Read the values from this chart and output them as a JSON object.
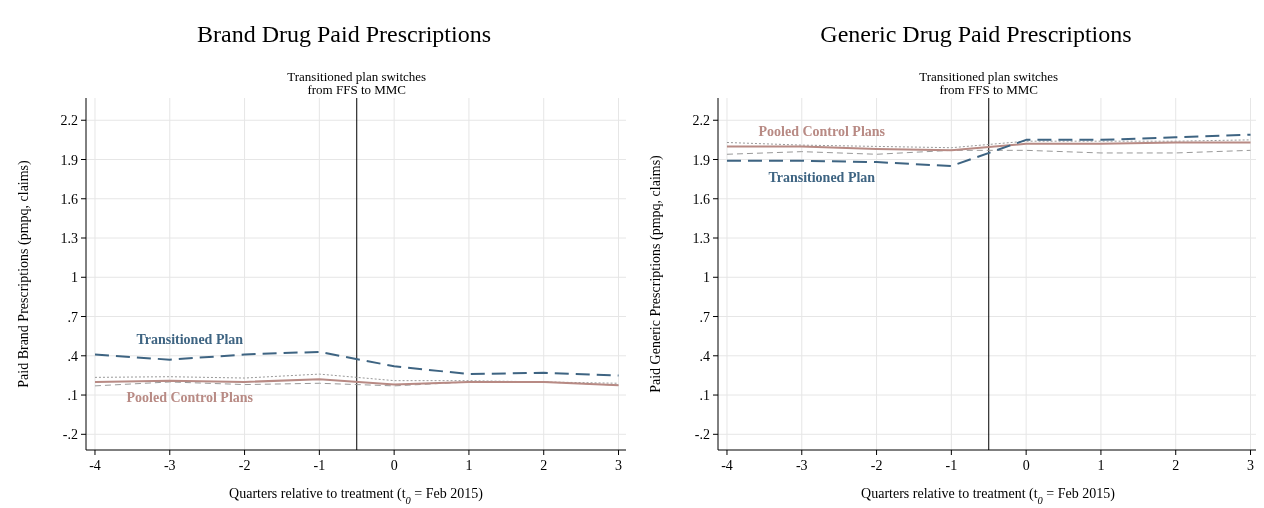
{
  "chart_data": [
    {
      "type": "line",
      "title": "Brand Drug Paid Prescriptions",
      "xlabel": "Quarters relative to treatment (t$_{0}$ = Feb 2015)",
      "ylabel": "Paid Brand Prescriptions (pmpq, claims)",
      "x": [
        -4,
        -3,
        -2,
        -1,
        0,
        1,
        2,
        3
      ],
      "xlim": [
        -4.12,
        3.1
      ],
      "xticks": [
        -4,
        -3,
        -2,
        -1,
        0,
        1,
        2,
        3
      ],
      "ylim": [
        -0.32,
        2.37
      ],
      "yticks": [
        {
          "value": -0.2,
          "label": "-.2"
        },
        {
          "value": 0.1,
          "label": ".1"
        },
        {
          "value": 0.4,
          "label": ".4"
        },
        {
          "value": 0.7,
          "label": ".7"
        },
        1,
        1.3,
        1.6,
        1.9,
        2.2
      ],
      "grid": true,
      "series": [
        {
          "color": "#999999",
          "line_style": "dotted",
          "values": [
            0.235,
            0.24,
            0.23,
            0.26,
            0.21,
            0.21,
            0.2,
            0.19
          ]
        },
        {
          "color": "#999999",
          "line_style": "dashed",
          "values": [
            0.17,
            0.2,
            0.18,
            0.19,
            0.17,
            0.2,
            0.2,
            0.175
          ]
        },
        {
          "name": "Pooled Control Plans",
          "color": "#b88a84",
          "line_style": "solid",
          "values": [
            0.2,
            0.21,
            0.2,
            0.22,
            0.18,
            0.2,
            0.2,
            0.175
          ]
        },
        {
          "name": "Transitioned Plan",
          "color": "#3e6482",
          "line_style": "dashed",
          "values": [
            0.41,
            0.37,
            0.41,
            0.43,
            0.32,
            0.26,
            0.27,
            0.25
          ]
        }
      ],
      "ref_lines": [
        {
          "axis": "x",
          "value": -0.5,
          "label": "Transitioned plan switches\nfrom FFS to MMC",
          "color": "#000000"
        }
      ]
    },
    {
      "type": "line",
      "title": "Generic Drug Paid Prescriptions",
      "xlabel": "Quarters relative to treatment (t$_{0}$ = Feb 2015)",
      "ylabel": "Paid Generic Prescriptions (pmpq, claims)",
      "x": [
        -4,
        -3,
        -2,
        -1,
        0,
        1,
        2,
        3
      ],
      "xlim": [
        -4.12,
        3.1
      ],
      "xticks": [
        -4,
        -3,
        -2,
        -1,
        0,
        1,
        2,
        3
      ],
      "ylim": [
        -0.32,
        2.37
      ],
      "yticks": [
        {
          "value": -0.2,
          "label": "-.2"
        },
        {
          "value": 0.1,
          "label": ".1"
        },
        {
          "value": 0.4,
          "label": ".4"
        },
        {
          "value": 0.7,
          "label": ".7"
        },
        1,
        1.3,
        1.6,
        1.9,
        2.2
      ],
      "grid": true,
      "series": [
        {
          "color": "#999999",
          "line_style": "dotted",
          "values": [
            2.03,
            2.01,
            2.0,
            1.99,
            2.04,
            2.04,
            2.04,
            2.05
          ]
        },
        {
          "color": "#999999",
          "line_style": "dashed",
          "values": [
            1.94,
            1.96,
            1.94,
            1.97,
            1.97,
            1.95,
            1.95,
            1.97
          ]
        },
        {
          "name": "Pooled Control Plans",
          "color": "#b88a84",
          "line_style": "solid",
          "values": [
            2.0,
            2.0,
            1.98,
            1.97,
            2.02,
            2.02,
            2.03,
            2.03
          ]
        },
        {
          "name": "Transitioned Plan",
          "color": "#3e6482",
          "line_style": "dashed",
          "values": [
            1.89,
            1.89,
            1.88,
            1.85,
            2.05,
            2.05,
            2.07,
            2.09
          ]
        }
      ],
      "ref_lines": [
        {
          "axis": "x",
          "value": -0.5,
          "label": "Transitioned plan switches\nfrom FFS to MMC",
          "color": "#000000"
        }
      ]
    }
  ]
}
